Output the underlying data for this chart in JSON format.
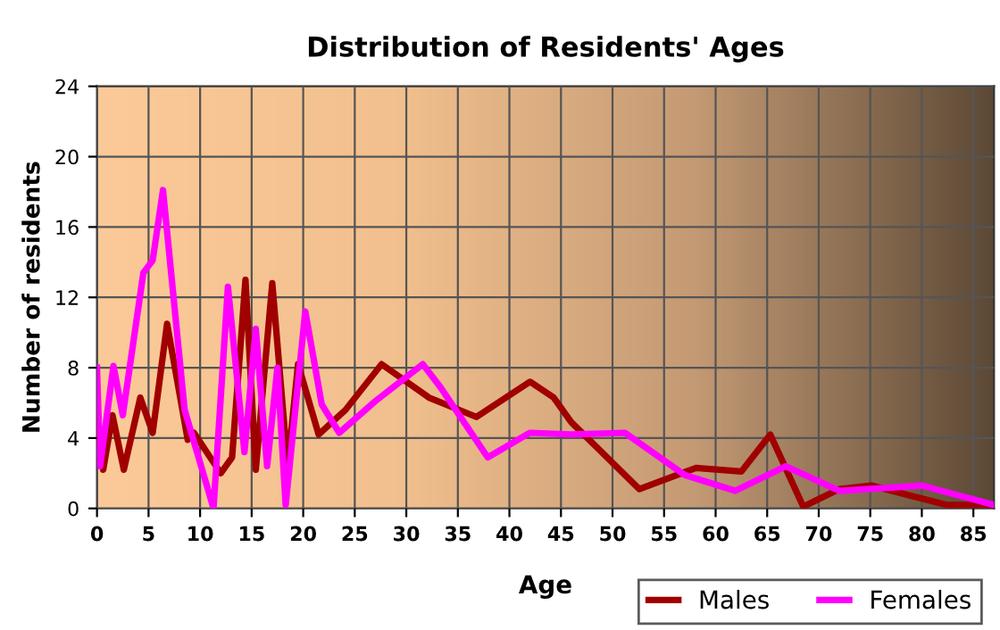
{
  "chart_data": {
    "type": "line",
    "title": "Distribution of Residents' Ages",
    "xlabel": "Age",
    "ylabel": "Number of residents",
    "xlim": [
      0,
      87
    ],
    "xticks": [
      0,
      5,
      10,
      15,
      20,
      25,
      30,
      35,
      40,
      45,
      50,
      55,
      60,
      65,
      70,
      75,
      80,
      85
    ],
    "ylim": [
      0,
      24
    ],
    "yticks": [
      0,
      4,
      8,
      12,
      16,
      20,
      24
    ],
    "grid": true,
    "legend": "bottom right",
    "marker": "none",
    "line_style": "solid",
    "series": [
      {
        "name": "Males",
        "color": "#a00000",
        "x": [
          0,
          0.6,
          1.5,
          2.6,
          4.2,
          5.4,
          6.8,
          8.8,
          9.4,
          12,
          13.1,
          14.4,
          15.4,
          17,
          18.5,
          19.5,
          21.5,
          24.1,
          27.6,
          32.2,
          36.8,
          42,
          44.3,
          46,
          52.6,
          58.1,
          62.5,
          65.3,
          68.5,
          72,
          75.1,
          82.4,
          87
        ],
        "values": [
          5.1,
          2.2,
          5.3,
          2.2,
          6.3,
          4.3,
          10.5,
          3.9,
          4.3,
          2.0,
          2.9,
          13.0,
          2.2,
          12.8,
          2.4,
          8.2,
          4.2,
          5.6,
          8.2,
          6.3,
          5.2,
          7.2,
          6.3,
          4.9,
          1.1,
          2.3,
          2.1,
          4.2,
          0.1,
          1.1,
          1.3,
          0.2,
          0.2
        ]
      },
      {
        "name": "Females",
        "color": "#ff00ff",
        "x": [
          0,
          0.3,
          1.6,
          2.5,
          4.5,
          5.4,
          6.4,
          8.5,
          9.7,
          11.3,
          12.7,
          14.3,
          15.4,
          16.5,
          17.5,
          18.3,
          20.2,
          21.8,
          23.5,
          27,
          31.6,
          33.3,
          37.9,
          42,
          46,
          51.2,
          57,
          61.9,
          66.8,
          72,
          80,
          87
        ],
        "values": [
          8.0,
          2.4,
          8.1,
          5.3,
          13.4,
          14.1,
          18.1,
          5.6,
          3.2,
          0,
          12.6,
          3.2,
          10.2,
          2.4,
          8.0,
          0.2,
          11.2,
          5.9,
          4.3,
          6.1,
          8.2,
          6.9,
          2.9,
          4.3,
          4.2,
          4.3,
          1.9,
          1.0,
          2.4,
          1.0,
          1.3,
          0.2
        ]
      }
    ]
  }
}
